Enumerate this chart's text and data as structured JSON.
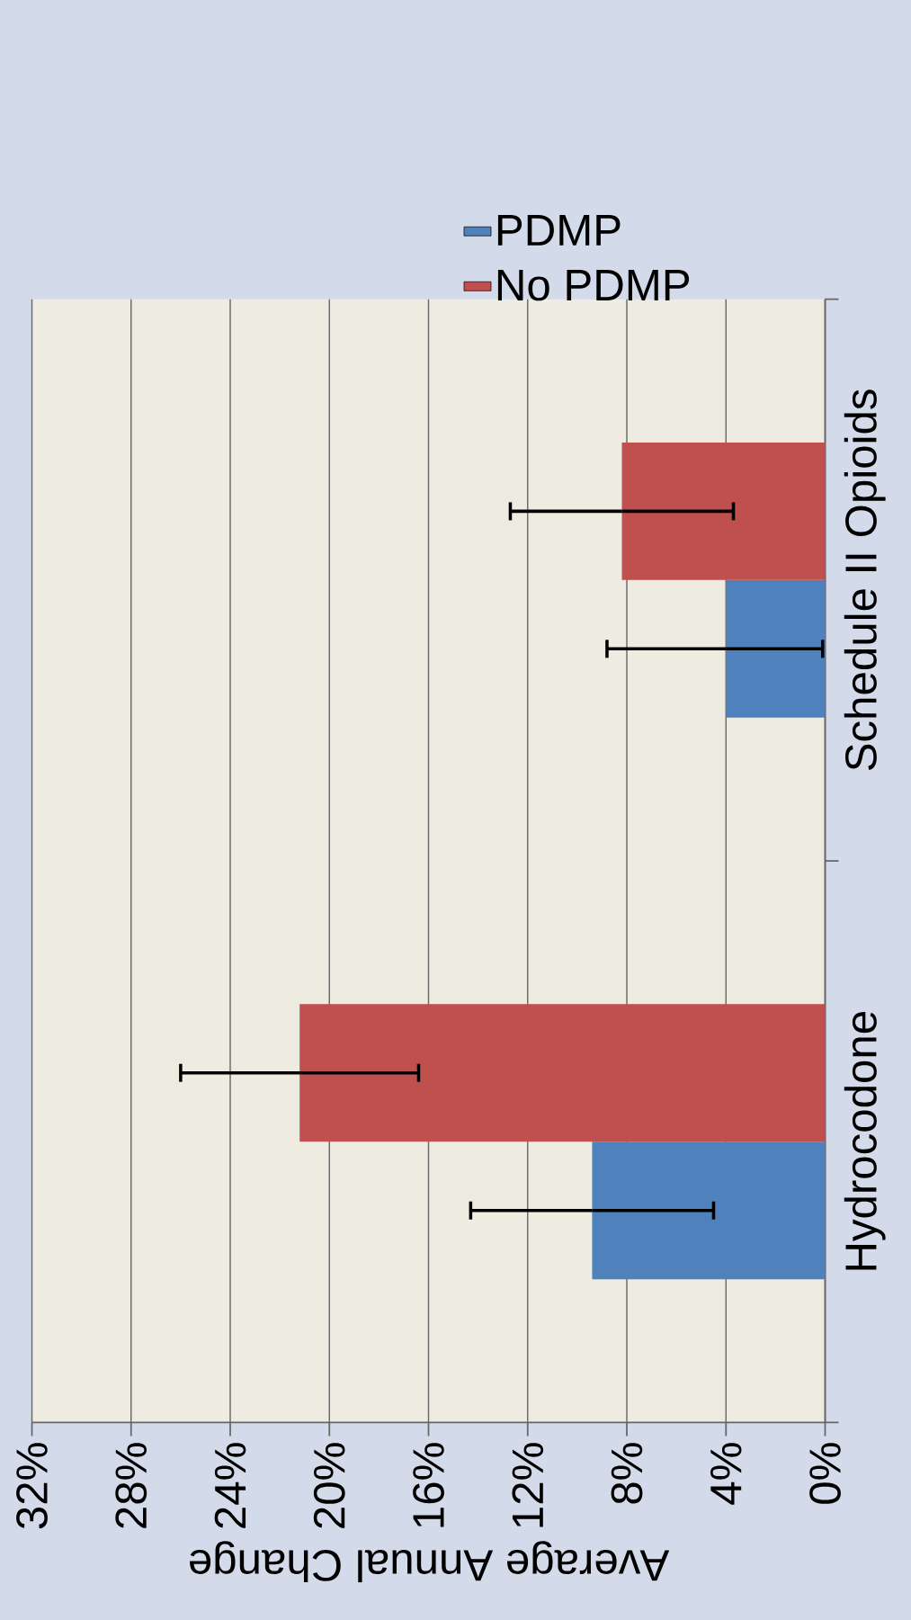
{
  "chart_data": {
    "type": "bar",
    "orientation": "horizontal",
    "xlabel": "Average Annual Change",
    "categories": [
      "Schedule II Opioids",
      "Hydrocodone"
    ],
    "series": [
      {
        "name": "PDMP",
        "color": "#4f81bd",
        "values": [
          4.0,
          9.4
        ],
        "errors": [
          [
            0.1,
            8.8
          ],
          4.9
        ]
      },
      {
        "name": "No PDMP",
        "color": "#c0504d",
        "values": [
          8.2,
          21.2
        ],
        "errors": [
          4.5,
          4.8
        ]
      }
    ],
    "xlim": [
      32,
      0
    ],
    "xticks": [
      {
        "value": 0,
        "label": "0%"
      },
      {
        "value": 4,
        "label": "4%"
      },
      {
        "value": 8,
        "label": "8%"
      },
      {
        "value": 12,
        "label": "12%"
      },
      {
        "value": 16,
        "label": "16%"
      },
      {
        "value": 20,
        "label": "20%"
      },
      {
        "value": 24,
        "label": "24%"
      },
      {
        "value": 28,
        "label": "28%"
      },
      {
        "value": 32,
        "label": "32%"
      }
    ],
    "grid": "x",
    "legend": "top"
  }
}
